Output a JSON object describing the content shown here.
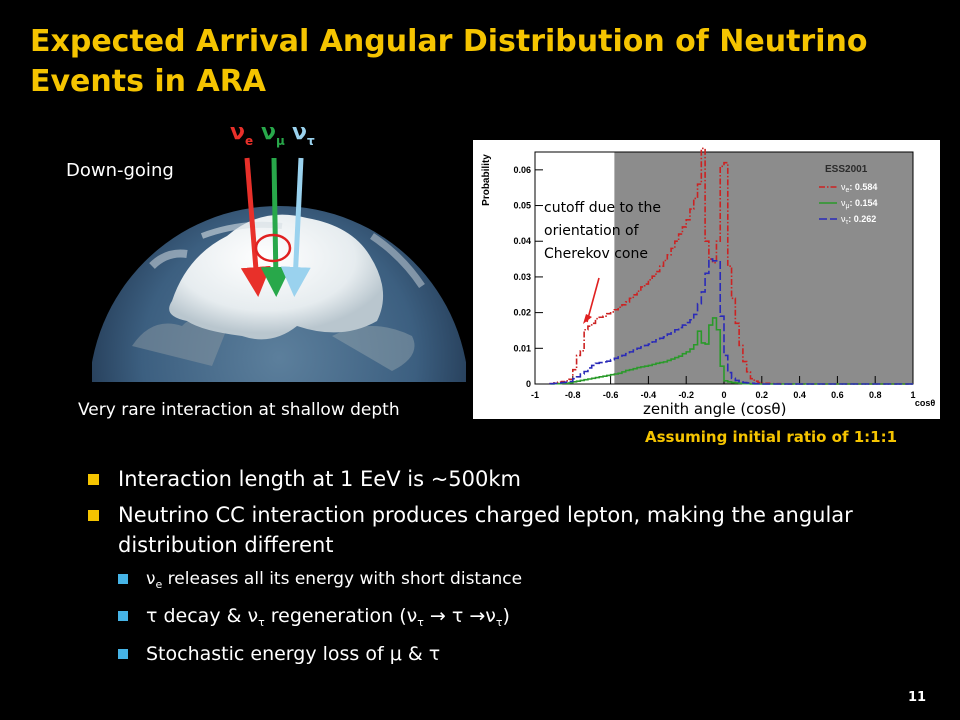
{
  "title": "Expected Arrival Angular Distribution of Neutrino Events in ARA",
  "left_panel": {
    "down_going_label": "Down-going",
    "shallow_label": "Very rare interaction at shallow depth",
    "arrow_colors": {
      "nu_e": "#e8302a",
      "nu_mu": "#28a84a",
      "nu_tau": "#9ad2ee"
    },
    "flavors": [
      {
        "base": "ν",
        "sub": "e",
        "color": "#e8302a"
      },
      {
        "base": "ν",
        "sub": "μ",
        "color": "#28a84a"
      },
      {
        "base": "ν",
        "sub": "τ",
        "color": "#9ad2ee"
      }
    ]
  },
  "annotations": {
    "cutoff_text": [
      "cutoff due to the",
      "orientation  of",
      "Cherekov  cone"
    ],
    "zenith_label": "zenith angle (cosθ)",
    "ratio_note": "Assuming initial ratio of 1:1:1"
  },
  "chart_data": {
    "type": "line",
    "step": true,
    "ylabel": "Probability",
    "xlabel": "cosθ",
    "xlim": [
      -1,
      1
    ],
    "ylim": [
      0,
      0.065
    ],
    "x_ticks": [
      "-1",
      "-0.8",
      "-0.6",
      "-0.4",
      "-0.2",
      "0",
      "0.2",
      "0.4",
      "0.6",
      "0.8",
      "1"
    ],
    "y_ticks": [
      "0",
      "0.01",
      "0.02",
      "0.03",
      "0.04",
      "0.05",
      "0.06"
    ],
    "shaded_region_cos": [
      -0.58,
      1.0
    ],
    "legend": {
      "title": "ESS2001",
      "position": "top-right"
    },
    "bin_edges": [
      -0.92,
      -0.9,
      -0.88,
      -0.86,
      -0.84,
      -0.82,
      -0.8,
      -0.78,
      -0.76,
      -0.74,
      -0.72,
      -0.7,
      -0.68,
      -0.66,
      -0.64,
      -0.62,
      -0.6,
      -0.58,
      -0.56,
      -0.54,
      -0.52,
      -0.5,
      -0.48,
      -0.46,
      -0.44,
      -0.42,
      -0.4,
      -0.38,
      -0.36,
      -0.34,
      -0.32,
      -0.3,
      -0.28,
      -0.26,
      -0.24,
      -0.22,
      -0.2,
      -0.18,
      -0.16,
      -0.14,
      -0.12,
      -0.1,
      -0.08,
      -0.06,
      -0.04,
      -0.02,
      0,
      0.02,
      0.04,
      0.06,
      0.08,
      0.1,
      0.12,
      0.14,
      0.16,
      0.18,
      0.2,
      0.22,
      0.24,
      0.26,
      0.28,
      0.3
    ],
    "series": [
      {
        "name": "ν",
        "sub": "e",
        "value_label": ": 0.584",
        "color": "#cc2222",
        "dash": "6,2,1.5,2",
        "values": [
          0.0001,
          0.0003,
          0.0005,
          0.0007,
          0.0009,
          0.0013,
          0.004,
          0.008,
          0.0093,
          0.0152,
          0.0162,
          0.017,
          0.0183,
          0.0187,
          0.019,
          0.0197,
          0.0202,
          0.0208,
          0.0215,
          0.0222,
          0.023,
          0.024,
          0.025,
          0.026,
          0.0272,
          0.028,
          0.0292,
          0.0302,
          0.0315,
          0.033,
          0.0346,
          0.0362,
          0.038,
          0.04,
          0.042,
          0.044,
          0.046,
          0.049,
          0.052,
          0.056,
          0.066,
          0.04,
          0.035,
          0.034,
          0.04,
          0.061,
          0.062,
          0.033,
          0.024,
          0.017,
          0.0108,
          0.0063,
          0.0034,
          0.0015,
          0.0008,
          0.0004,
          0.0002,
          0.0002,
          0.0001,
          0.0001,
          0.0001
        ]
      },
      {
        "name": "ν",
        "sub": "μ",
        "value_label": ": 0.154",
        "color": "#2a9a2a",
        "dash": "",
        "values": [
          0,
          0.0001,
          0.0001,
          0.0002,
          0.0002,
          0.0003,
          0.0006,
          0.0008,
          0.001,
          0.0012,
          0.0014,
          0.0016,
          0.0018,
          0.002,
          0.0022,
          0.0024,
          0.0026,
          0.0028,
          0.003,
          0.0034,
          0.0038,
          0.004,
          0.0043,
          0.0046,
          0.0048,
          0.005,
          0.0052,
          0.0055,
          0.0058,
          0.006,
          0.0062,
          0.0066,
          0.007,
          0.0074,
          0.0078,
          0.0085,
          0.009,
          0.0098,
          0.011,
          0.0148,
          0.0115,
          0.0112,
          0.0165,
          0.0185,
          0.0152,
          0.005,
          0.0009,
          0.0006,
          0.0004,
          0.0003,
          0.0002,
          0.0001,
          0.0001,
          0,
          0,
          0,
          0,
          0,
          0,
          0,
          0
        ]
      },
      {
        "name": "ν",
        "sub": "τ",
        "value_label": ": 0.262",
        "color": "#2a2ab8",
        "dash": "8,3",
        "values": [
          0.0001,
          0.0002,
          0.0003,
          0.0004,
          0.0005,
          0.0007,
          0.0015,
          0.002,
          0.0028,
          0.0035,
          0.0045,
          0.0052,
          0.0058,
          0.006,
          0.0062,
          0.0064,
          0.0068,
          0.0072,
          0.0076,
          0.008,
          0.0085,
          0.009,
          0.0095,
          0.01,
          0.0104,
          0.0108,
          0.0112,
          0.0118,
          0.0124,
          0.0128,
          0.0132,
          0.014,
          0.0146,
          0.0152,
          0.0158,
          0.0165,
          0.0172,
          0.018,
          0.0195,
          0.0225,
          0.0258,
          0.031,
          0.035,
          0.0345,
          0.0345,
          0.019,
          0.008,
          0.0032,
          0.0016,
          0.001,
          0.0006,
          0.0004,
          0.0003,
          0.0002,
          0.0001,
          0.0001,
          0,
          0,
          0,
          0,
          0
        ]
      }
    ]
  },
  "bullets": [
    {
      "text": "Interaction length at 1 EeV is ~500km"
    },
    {
      "text": "Neutrino CC interaction produces charged lepton, making the angular distribution different",
      "subs": [
        {
          "parts": [
            {
              "t": "ν"
            },
            {
              "t": "e",
              "sub": true
            },
            {
              "t": " releases all its energy with short distance"
            }
          ]
        },
        {
          "parts": [
            {
              "t": "τ decay  & ν"
            },
            {
              "t": "τ",
              "sub": true
            },
            {
              "t": " regeneration (ν"
            },
            {
              "t": "τ",
              "sub": true
            },
            {
              "t": "  → τ →ν"
            },
            {
              "t": "τ",
              "sub": true
            },
            {
              "t": ")"
            }
          ],
          "big": true
        },
        {
          "parts": [
            {
              "t": "Stochastic energy loss of μ & τ"
            }
          ],
          "big": true
        }
      ]
    }
  ],
  "page_number": "11"
}
